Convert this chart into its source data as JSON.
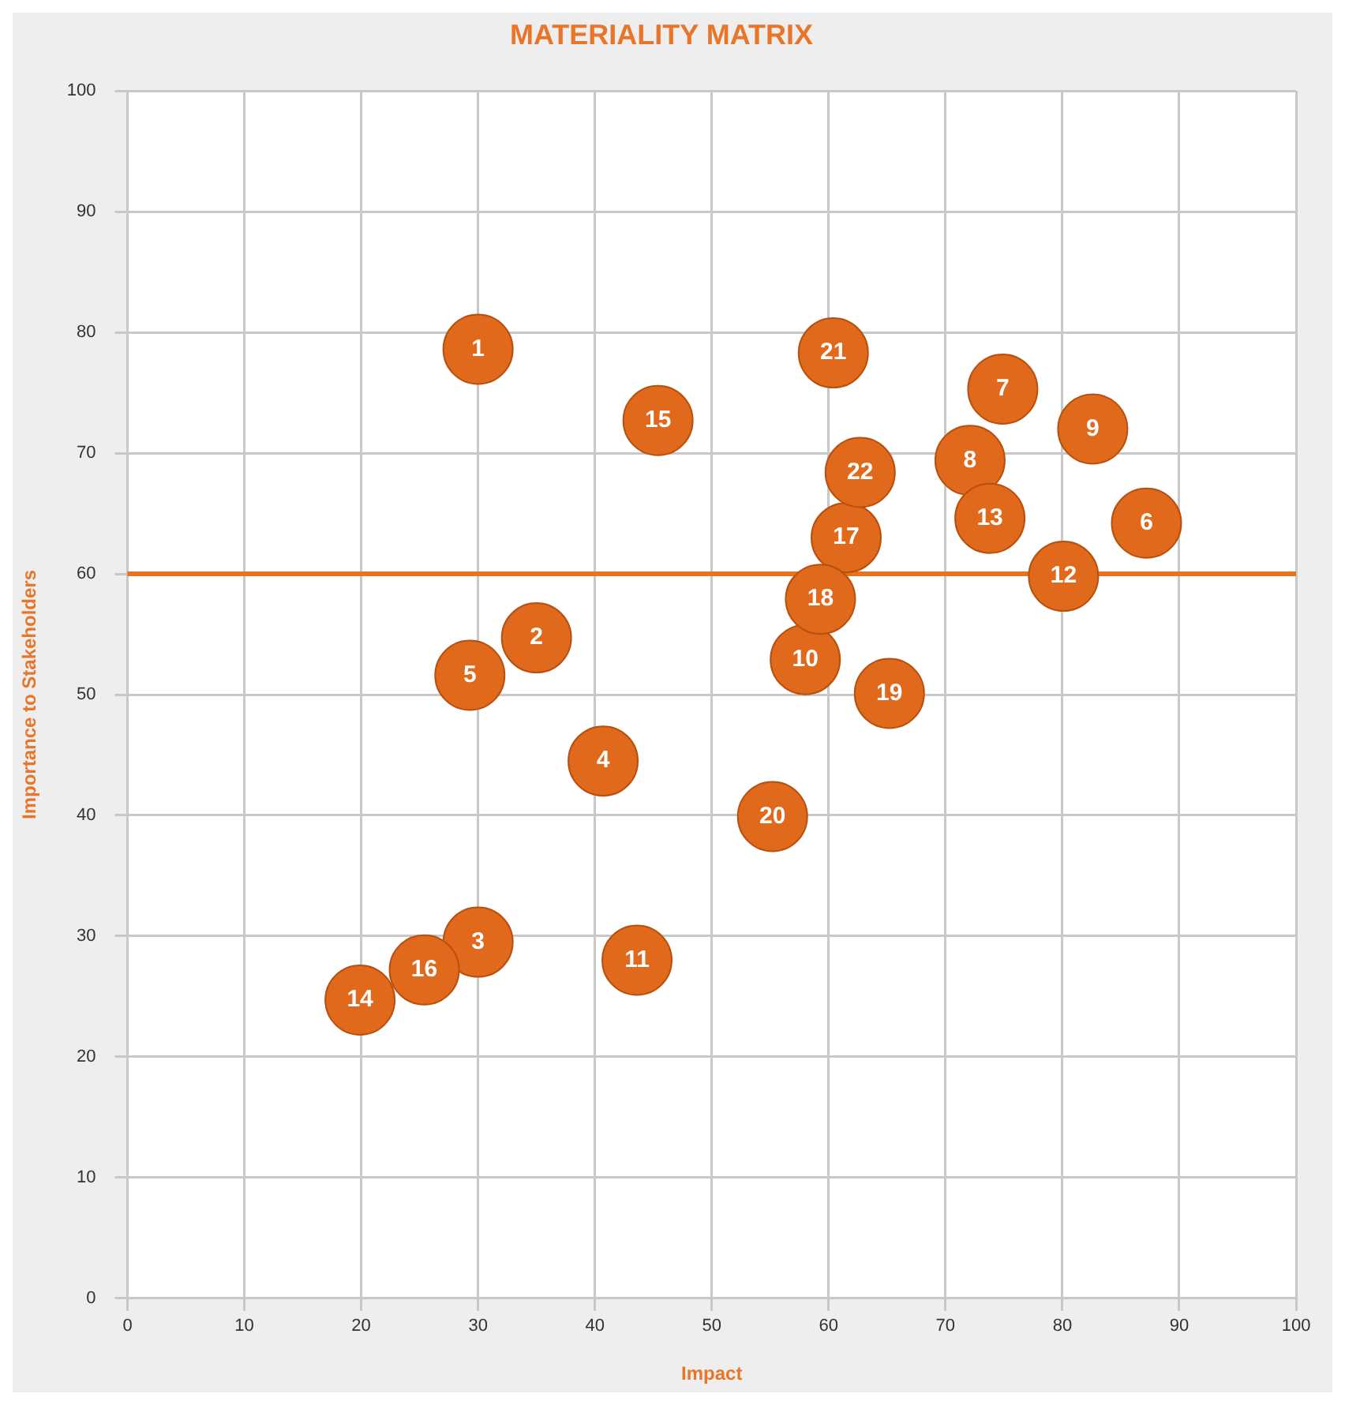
{
  "chart_data": {
    "type": "scatter",
    "title": "MATERIALITY MATRIX",
    "xlabel": "Impact",
    "ylabel": "Importance to Stakeholders",
    "x": [
      30,
      35,
      30,
      40.7,
      29.3,
      87.2,
      74.9,
      72.1,
      82.6,
      58,
      43.6,
      80.1,
      73.8,
      19.9,
      45.4,
      25.4,
      61.5,
      59.3,
      65.2,
      55.2,
      60.4,
      62.7
    ],
    "values": [
      78.6,
      54.7,
      29.5,
      44.5,
      51.6,
      64.2,
      75.3,
      69.4,
      72,
      52.9,
      28,
      59.8,
      64.6,
      24.7,
      72.7,
      27.2,
      63,
      57.9,
      50.1,
      39.9,
      78.3,
      68.4
    ],
    "annotations": [
      {
        "text": "1",
        "x": 30,
        "y": 78.6
      },
      {
        "text": "2",
        "x": 35,
        "y": 54.7
      },
      {
        "text": "3",
        "x": 30,
        "y": 29.5
      },
      {
        "text": "4",
        "x": 40.7,
        "y": 44.5
      },
      {
        "text": "5",
        "x": 29.3,
        "y": 51.6
      },
      {
        "text": "6",
        "x": 87.2,
        "y": 64.2
      },
      {
        "text": "7",
        "x": 74.9,
        "y": 75.3
      },
      {
        "text": "8",
        "x": 72.1,
        "y": 69.4
      },
      {
        "text": "9",
        "x": 82.6,
        "y": 72
      },
      {
        "text": "10",
        "x": 58,
        "y": 52.9
      },
      {
        "text": "11",
        "x": 43.6,
        "y": 28
      },
      {
        "text": "12",
        "x": 80.1,
        "y": 59.8
      },
      {
        "text": "13",
        "x": 73.8,
        "y": 64.6
      },
      {
        "text": "14",
        "x": 19.9,
        "y": 24.7
      },
      {
        "text": "15",
        "x": 45.4,
        "y": 72.7
      },
      {
        "text": "16",
        "x": 25.4,
        "y": 27.2
      },
      {
        "text": "17",
        "x": 61.5,
        "y": 63
      },
      {
        "text": "18",
        "x": 59.3,
        "y": 57.9
      },
      {
        "text": "19",
        "x": 65.2,
        "y": 50.1
      },
      {
        "text": "20",
        "x": 55.2,
        "y": 39.9
      },
      {
        "text": "21",
        "x": 60.4,
        "y": 78.3
      },
      {
        "text": "22",
        "x": 62.7,
        "y": 68.4
      }
    ],
    "color": "#e0691b",
    "marker": "circle",
    "xlim": [
      0,
      100
    ],
    "ylim": [
      0,
      100
    ],
    "xticks": [
      0,
      10,
      20,
      30,
      40,
      50,
      60,
      70,
      80,
      90,
      100
    ],
    "yticks": [
      0,
      10,
      20,
      30,
      40,
      50,
      60,
      70,
      80,
      90,
      100
    ],
    "grid": true,
    "ref_lines": [
      {
        "axis": "y",
        "value": 60,
        "color": "#e8731e"
      }
    ]
  }
}
